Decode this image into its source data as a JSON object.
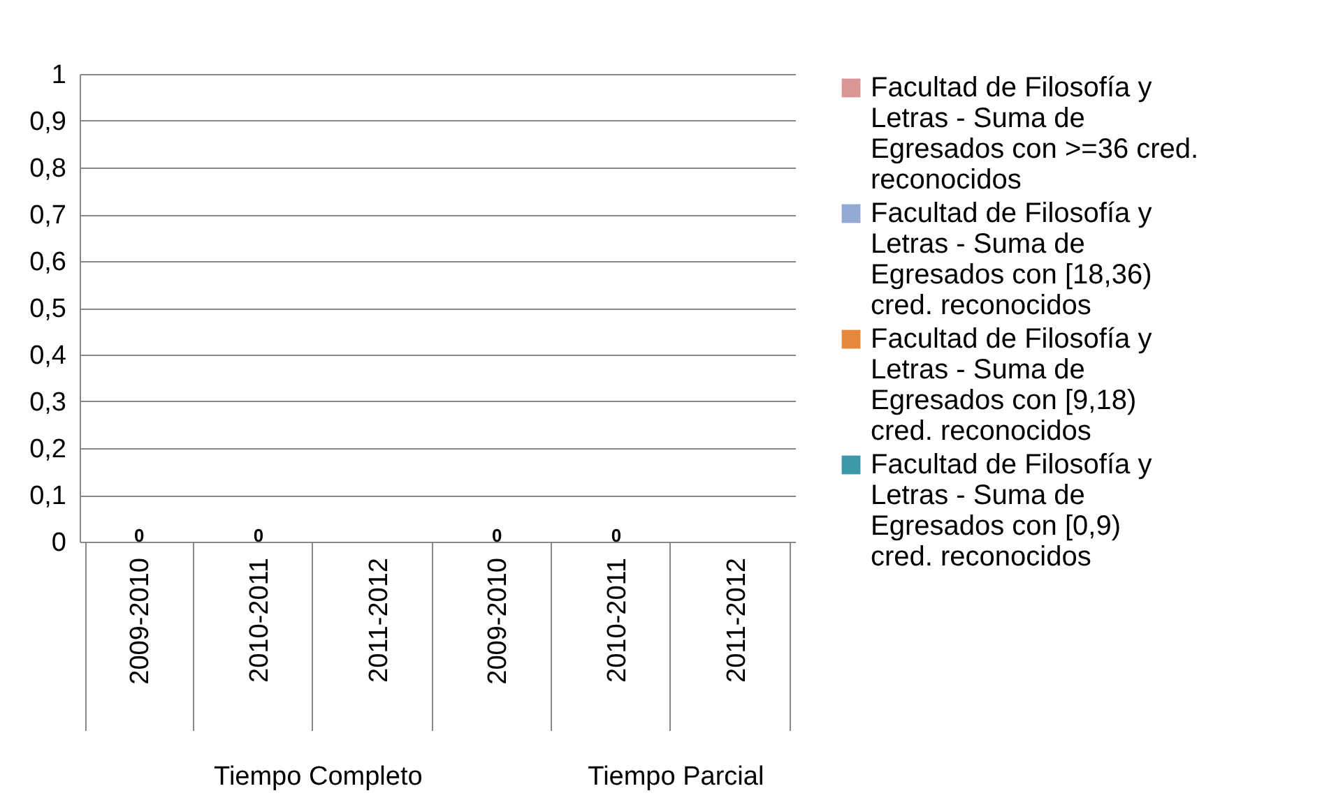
{
  "chart_data": {
    "type": "bar",
    "stacked": true,
    "categories": [
      "2009-2010",
      "2010-2011",
      "2011-2012",
      "2009-2010",
      "2010-2011",
      "2011-2012"
    ],
    "series": [
      {
        "name": "Facultad de Filosofía y Letras - Suma de Egresados con >=36 cred. reconocidos",
        "color": "#d99694",
        "values": [
          0,
          0,
          null,
          0,
          0,
          null
        ],
        "value_labels": [
          "0",
          "0",
          null,
          "0",
          "0",
          null
        ]
      },
      {
        "name": "Facultad de Filosofía y Letras - Suma de Egresados con [18,36) cred. reconocidos",
        "color": "#93a9d4",
        "values": [
          0,
          0,
          null,
          0,
          0,
          null
        ]
      },
      {
        "name": "Facultad de Filosofía y Letras - Suma de Egresados con [9,18) cred. reconocidos",
        "color": "#e6883c",
        "values": [
          0,
          0,
          null,
          0,
          0,
          null
        ]
      },
      {
        "name": "Facultad de Filosofía y Letras - Suma de Egresados con [0,9) cred. reconocidos",
        "color": "#3c97a8",
        "values": [
          0,
          0,
          null,
          0,
          0,
          null
        ]
      }
    ],
    "annotations": [
      "Tiempo Completo",
      "Tiempo Parcial"
    ],
    "ylim": [
      0,
      1
    ],
    "yticks": [
      0,
      {
        "value": 0.1,
        "label": "0,1"
      },
      {
        "value": 0.2,
        "label": "0,2"
      },
      {
        "value": 0.3,
        "label": "0,3"
      },
      {
        "value": 0.4,
        "label": "0,4"
      },
      {
        "value": 0.5,
        "label": "0,5"
      },
      {
        "value": 0.6,
        "label": "0,6"
      },
      {
        "value": 0.7,
        "label": "0,7"
      },
      {
        "value": 0.8,
        "label": "0,8"
      },
      {
        "value": 0.9,
        "label": "0,9"
      },
      1
    ],
    "grid": "y",
    "legend": "right"
  }
}
